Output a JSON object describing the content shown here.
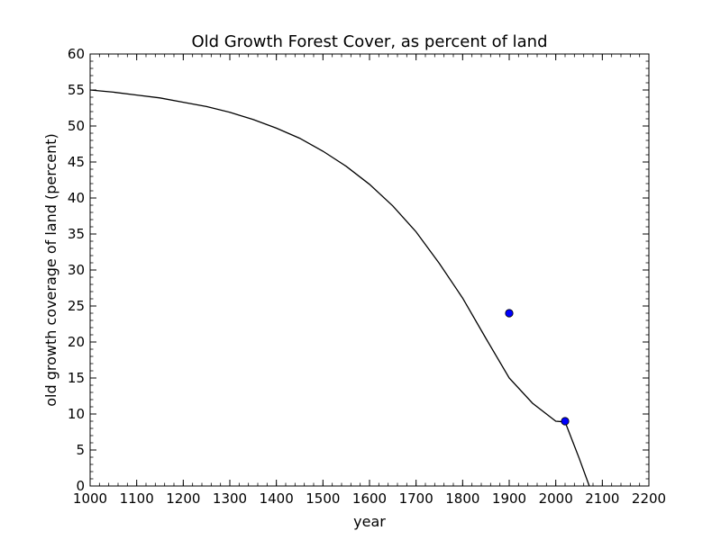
{
  "chart_data": {
    "type": "line",
    "title": "Old Growth Forest Cover, as percent of land",
    "xlabel": "year",
    "ylabel": "old growth coverage of land (percent)",
    "xlim": [
      1000,
      2200
    ],
    "ylim": [
      0,
      60
    ],
    "x_ticks": [
      1000,
      1100,
      1200,
      1300,
      1400,
      1500,
      1600,
      1700,
      1800,
      1900,
      2000,
      2100,
      2200
    ],
    "y_ticks": [
      0,
      5,
      10,
      15,
      20,
      25,
      30,
      35,
      40,
      45,
      50,
      55,
      60
    ],
    "grid": false,
    "series": [
      {
        "kind": "line",
        "color": "#000000",
        "x": [
          1000,
          1050,
          1100,
          1150,
          1200,
          1250,
          1300,
          1350,
          1400,
          1450,
          1500,
          1550,
          1600,
          1650,
          1700,
          1750,
          1800,
          1850,
          1900,
          1950,
          2000,
          2020,
          2050,
          2072
        ],
        "y": [
          55.0,
          54.7,
          54.3,
          53.9,
          53.3,
          52.7,
          51.9,
          50.9,
          49.7,
          48.3,
          46.5,
          44.4,
          41.9,
          38.9,
          35.3,
          30.9,
          26.1,
          20.5,
          15.0,
          11.5,
          9.0,
          8.9,
          3.9,
          0.0
        ]
      },
      {
        "kind": "markers",
        "color": "#0000ff",
        "x": [
          1900,
          2020
        ],
        "y": [
          24.0,
          9.0
        ]
      }
    ]
  }
}
